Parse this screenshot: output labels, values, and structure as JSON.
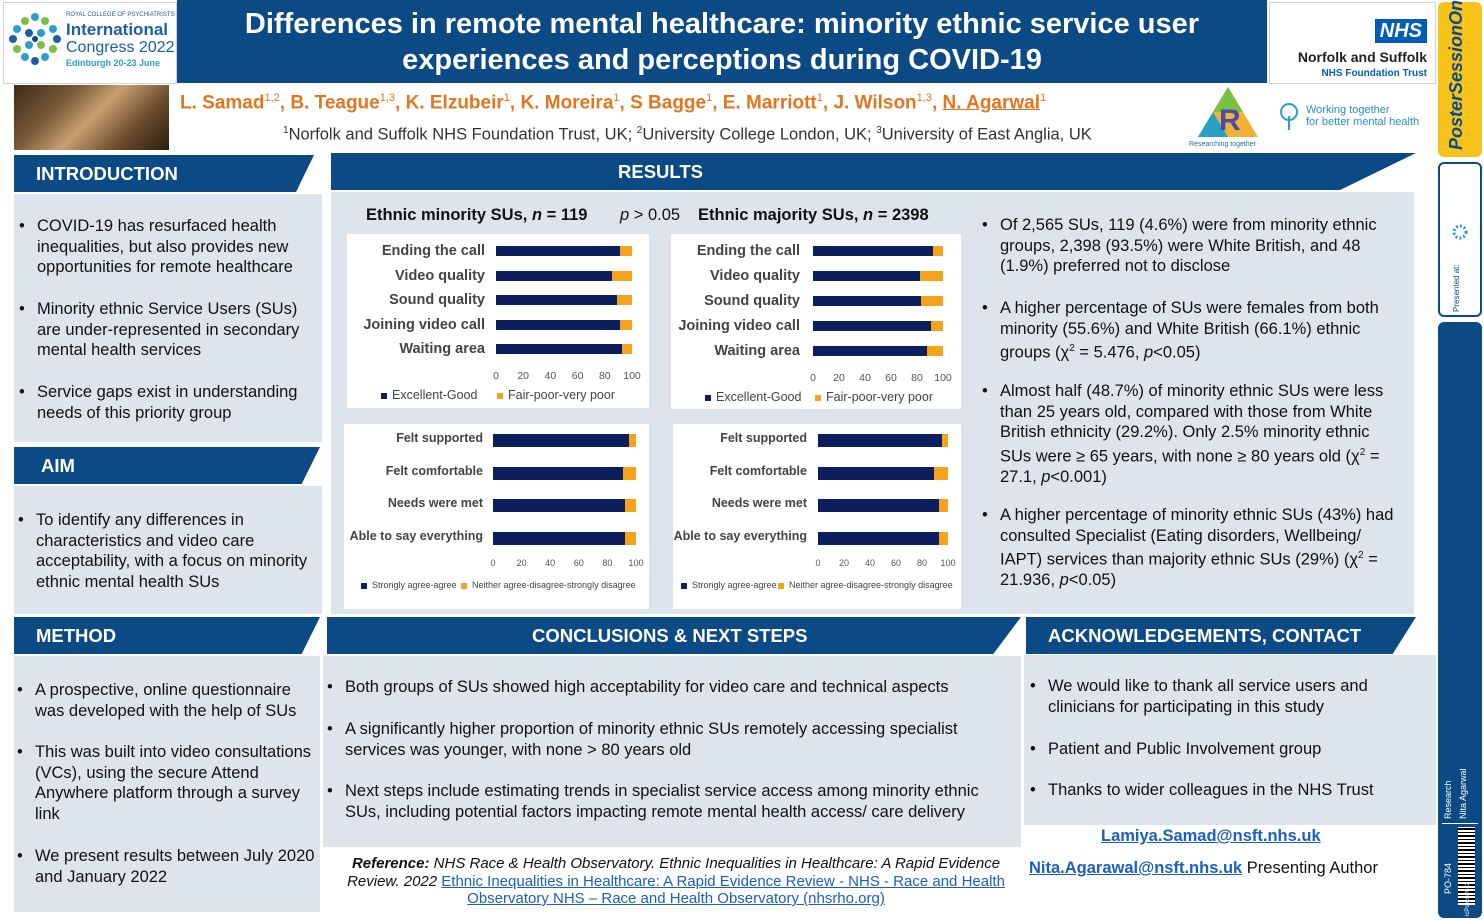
{
  "header": {
    "logo_left": {
      "line1": "ROYAL COLLEGE OF PSYCHIATRISTS",
      "line2": "International",
      "line3": "Congress 2022",
      "line4": "Edinburgh 20-23 June"
    },
    "title_line1": "Differences in remote mental healthcare: minority ethnic service user",
    "title_line2": "experiences and perceptions during COVID-19",
    "nhs_logo": {
      "badge": "NHS",
      "org": "Norfolk and Suffolk",
      "trust": "NHS Foundation Trust"
    },
    "authors": [
      {
        "name": "L. Samad",
        "sup": "1,2"
      },
      {
        "name": "B. Teague",
        "sup": "1,3"
      },
      {
        "name": "K. Elzubeir",
        "sup": "1"
      },
      {
        "name": "K. Moreira",
        "sup": "1"
      },
      {
        "name": "S Bagge",
        "sup": "1"
      },
      {
        "name": "E. Marriott",
        "sup": "1"
      },
      {
        "name": "J. Wilson",
        "sup": "1,3"
      },
      {
        "name": "N. Agarwal",
        "sup": "1"
      }
    ],
    "affiliations": [
      {
        "sup": "1",
        "text": "Norfolk and Suffolk NHS Foundation Trust, UK; "
      },
      {
        "sup": "2",
        "text": "University College London, UK; "
      },
      {
        "sup": "3",
        "text": "University of East Anglia, UK"
      }
    ],
    "r_logo_caption": "Researching together",
    "wt_logo": {
      "line1": "Working together",
      "line2": "for better mental health"
    }
  },
  "side_strip": {
    "yellow": "PosterSessionOnline",
    "presented_at": "Presented at:",
    "research": "Research",
    "author": "Nita Agarwal",
    "code": "PO-784",
    "year": "icPsych2022"
  },
  "introduction": {
    "heading": "INTRODUCTION",
    "bullets": [
      "COVID-19 has resurfaced health inequalities, but also provides new opportunities for remote healthcare",
      "Minority ethnic Service Users (SUs) are under-represented in secondary mental health services",
      "Service gaps exist in understanding needs of this priority group"
    ]
  },
  "aim": {
    "heading": "AIM",
    "bullets": [
      "To identify any differences in characteristics and video care acceptability, with a focus on minority ethnic mental health SUs"
    ]
  },
  "method": {
    "heading": "METHOD",
    "bullets": [
      "A prospective, online questionnaire was developed with the help of SUs",
      "This was built into video consultations (VCs), using the secure Attend Anywhere platform through a survey link",
      "We present results between July 2020 and January 2022"
    ]
  },
  "results": {
    "heading": "RESULTS",
    "minority_title": "Ethnic minority SUs, ",
    "minority_n": "n",
    "minority_n_val": " = 119",
    "p_label": "p",
    "p_val": " > 0.05",
    "majority_title": "Ethnic majority SUs, ",
    "majority_n": "n",
    "majority_n_val": " = 2398",
    "bullets": [
      "Of 2,565 SUs, 119 (4.6%) were from minority ethnic groups, 2,398 (93.5%) were White British, and 48 (1.9%) preferred not to disclose",
      "A higher percentage of SUs were females from both minority (55.6%) and White British (66.1%) ethnic groups (χ2 = 5.476, p<0.05)",
      "Almost half (48.7%) of minority ethnic SUs were less than 25 years old, compared with those from White British ethnicity (29.2%).  Only 2.5% minority ethnic SUs were ≥ 65 years, with none ≥ 80 years old (χ2 = 27.1, p<0.001)",
      "A higher percentage of minority ethnic SUs (43%) had consulted Specialist (Eating disorders, Wellbeing/ IAPT) services than majority ethnic SUs (29%) (χ2 = 21.936, p<0.05)"
    ]
  },
  "conclusions": {
    "heading": "CONCLUSIONS & NEXT STEPS",
    "bullets": [
      "Both groups of SUs showed high acceptability for video care and technical aspects",
      "A significantly higher proportion of minority ethnic SUs remotely accessing specialist services was younger, with none > 80 years old",
      "Next steps include estimating trends in specialist service access among minority ethnic SUs, including potential factors impacting remote mental health access/ care delivery"
    ],
    "reference_label": "Reference:",
    "reference_text": "  NHS Race & Health Observatory. Ethnic Inequalities in Healthcare: A Rapid Evidence Review. 2022 ",
    "reference_link": "Ethnic Inequalities in Healthcare: A Rapid Evidence Review - NHS - Race and Health Observatory NHS – Race and Health Observatory (nhsrho.org)"
  },
  "acknowledgements": {
    "heading": "ACKNOWLEDGEMENTS, CONTACT",
    "bullets": [
      "We would like to thank all service users and clinicians for participating in this study",
      "Patient and Public Involvement group",
      "Thanks to wider colleagues in the NHS Trust"
    ],
    "email1": "Lamiya.Samad@nsft.nhs.uk",
    "email2": "Nita.Agarawal@nsft.nhs.uk",
    "presenting": "  Presenting Author"
  },
  "colors": {
    "navy": "#0b4a85",
    "panel": "#dde4ec",
    "orange": "#e2761e",
    "bar_navy": "#0c1e5b",
    "bar_orange": "#f5a21d"
  },
  "chart_data": [
    {
      "type": "bar",
      "orientation": "horizontal",
      "stacked": true,
      "group": "Ethnic minority SUs",
      "categories": [
        "Ending the call",
        "Video quality",
        "Sound quality",
        "Joining video call",
        "Waiting area"
      ],
      "series": [
        {
          "name": "Excellent-Good",
          "values": [
            91,
            85,
            89,
            91,
            93
          ]
        },
        {
          "name": "Fair-poor-very poor",
          "values": [
            9,
            15,
            11,
            9,
            7
          ]
        }
      ],
      "xticks": [
        "0",
        "20",
        "40",
        "60",
        "80",
        "100"
      ],
      "xlim": [
        0,
        100
      ],
      "legend": "bottom"
    },
    {
      "type": "bar",
      "orientation": "horizontal",
      "stacked": true,
      "group": "Ethnic majority SUs",
      "categories": [
        "Ending the call",
        "Video quality",
        "Sound quality",
        "Joining video call",
        "Waiting area"
      ],
      "series": [
        {
          "name": "Excellent-Good",
          "values": [
            92,
            82,
            83,
            91,
            88
          ]
        },
        {
          "name": "Fair-poor-very poor",
          "values": [
            8,
            18,
            17,
            9,
            12
          ]
        }
      ],
      "xticks": [
        "0",
        "20",
        "40",
        "60",
        "80",
        "100"
      ],
      "xlim": [
        0,
        100
      ],
      "legend": "bottom"
    },
    {
      "type": "bar",
      "orientation": "horizontal",
      "stacked": true,
      "group": "Ethnic minority SUs",
      "categories": [
        "Felt supported",
        "Felt comfortable",
        "Needs were met",
        "Able to say everything"
      ],
      "series": [
        {
          "name": "Strongly agree-agree",
          "values": [
            95,
            91,
            92,
            92
          ]
        },
        {
          "name": "Neither agree-disagree-strongly disagree",
          "values": [
            5,
            9,
            8,
            8
          ]
        }
      ],
      "xticks": [
        "0",
        "20",
        "40",
        "60",
        "80",
        "100"
      ],
      "xlim": [
        0,
        100
      ],
      "legend": "bottom"
    },
    {
      "type": "bar",
      "orientation": "horizontal",
      "stacked": true,
      "group": "Ethnic majority SUs",
      "categories": [
        "Felt supported",
        "Felt comfortable",
        "Needs were met",
        "Able to say everything"
      ],
      "series": [
        {
          "name": "Strongly agree-agree",
          "values": [
            95,
            89,
            93,
            93
          ]
        },
        {
          "name": "Neither agree-disagree-strongly disagree",
          "values": [
            5,
            11,
            7,
            7
          ]
        }
      ],
      "xticks": [
        "0",
        "20",
        "40",
        "60",
        "80",
        "100"
      ],
      "xlim": [
        0,
        100
      ],
      "legend": "bottom"
    }
  ]
}
